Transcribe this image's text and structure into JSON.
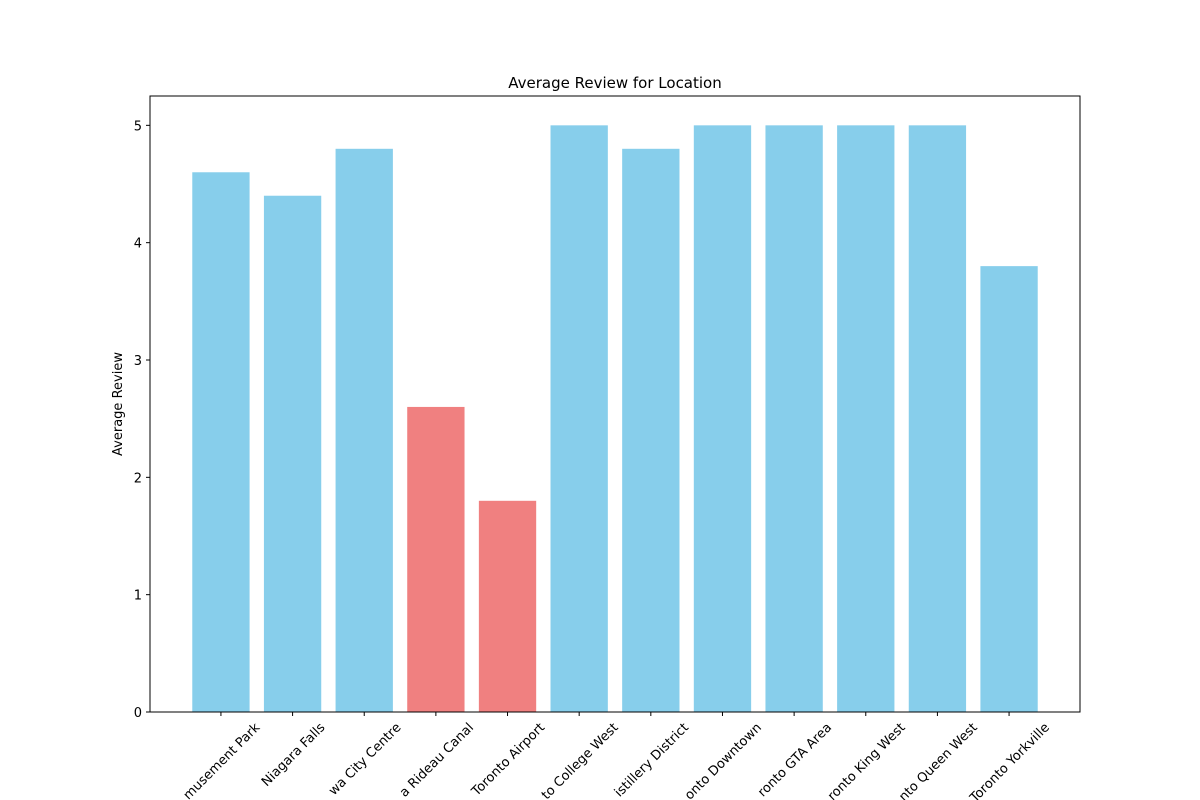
{
  "chart_data": {
    "type": "bar",
    "title": "Average Review for Location",
    "y_label": "Average Review",
    "categories": [
      "musement Park",
      "Niagara Falls",
      "wa City Centre",
      "a Rideau Canal",
      "Toronto Airport",
      "to College West",
      "istillery District",
      "onto Downtown",
      "ronto GTA Area",
      "ronto King West",
      "nto Queen West",
      "Toronto Yorkville"
    ],
    "values": [
      4.6,
      4.4,
      4.8,
      2.6,
      1.8,
      5,
      4.8,
      5,
      5,
      5,
      5,
      3.8
    ],
    "colors": [
      "#87ceeb",
      "#87ceeb",
      "#87ceeb",
      "#f08080",
      "#f08080",
      "#87ceeb",
      "#87ceeb",
      "#87ceeb",
      "#87ceeb",
      "#87ceeb",
      "#87ceeb",
      "#87ceeb"
    ],
    "ylim": [
      0,
      5.25
    ],
    "yticks": [
      0,
      1,
      2,
      3,
      4,
      5
    ],
    "grid": false
  }
}
